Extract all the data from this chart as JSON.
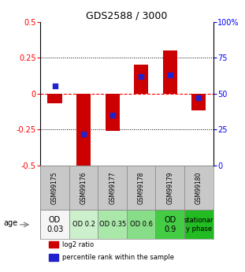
{
  "title": "GDS2588 / 3000",
  "samples": [
    "GSM99175",
    "GSM99176",
    "GSM99177",
    "GSM99178",
    "GSM99179",
    "GSM99180"
  ],
  "log2_ratio": [
    -0.07,
    -0.58,
    -0.26,
    0.2,
    0.3,
    -0.12
  ],
  "percentile_rank": [
    55,
    22,
    35,
    62,
    63,
    47
  ],
  "ylim": [
    -0.5,
    0.5
  ],
  "y2lim": [
    0,
    100
  ],
  "yticks": [
    -0.5,
    -0.25,
    0,
    0.25,
    0.5
  ],
  "y2ticks": [
    0,
    25,
    50,
    75,
    100
  ],
  "bar_color": "#cc0000",
  "dot_color": "#2222cc",
  "sample_bg": "#c8c8c8",
  "age_labels": [
    "OD\n0.03",
    "OD 0.2",
    "OD 0.35",
    "OD 0.6",
    "OD\n0.9",
    "stationar\ny phase"
  ],
  "age_bg_colors": [
    "#f5f5f5",
    "#ccf0cc",
    "#aae8aa",
    "#88dd88",
    "#44cc44",
    "#22bb22"
  ],
  "age_text_sizes": [
    7,
    6,
    6,
    6,
    7,
    6
  ],
  "legend_items": [
    "log2 ratio",
    "percentile rank within the sample"
  ],
  "legend_colors": [
    "#cc0000",
    "#2222cc"
  ]
}
